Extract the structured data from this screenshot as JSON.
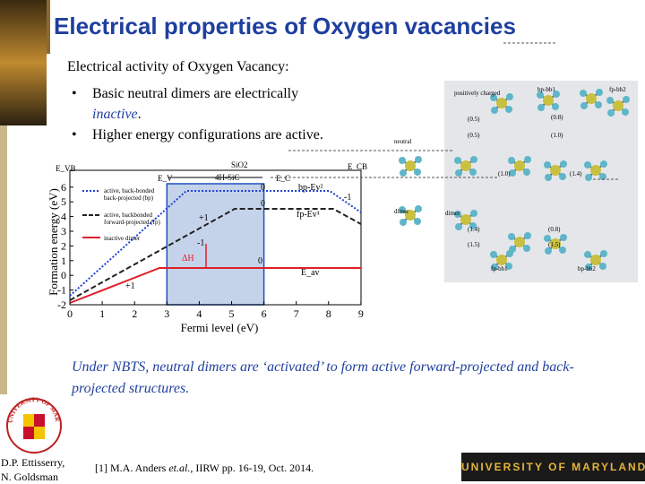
{
  "header": {
    "title": "Electrical properties of Oxygen vacancies"
  },
  "body": {
    "heading": "Electrical activity of Oxygen Vacancy:",
    "bullets": [
      {
        "marker": "•",
        "text": "Basic neutral dimers are electrically",
        "emphasis": "inactive",
        "end": "."
      },
      {
        "marker": "•",
        "text": "Higher energy configurations are active."
      }
    ]
  },
  "plot": {
    "xlabel": "Fermi level (eV)",
    "ylabel": "Formation energy (eV)",
    "xticks": [
      0,
      1,
      2,
      3,
      4,
      5,
      6,
      7,
      8,
      9
    ],
    "yticks": [
      -2,
      -1,
      0,
      1,
      2,
      3,
      4,
      5,
      6
    ],
    "band_labels": [
      "E_VB",
      "SiO2",
      "4H-SiC",
      "E_V",
      "E_C",
      "E_CB"
    ],
    "legend": [
      "active, back-bonded",
      "back-projected (bp)",
      "active, backbonded",
      "forward-projected (fp)",
      "inactive dimer"
    ],
    "annotations": [
      "0",
      "0",
      "-1",
      "+1",
      "-1",
      "0",
      "+1",
      "ΔH",
      "bp-Ev²",
      "fp-Ev¹",
      "E_av"
    ]
  },
  "diagram": {
    "labels": [
      "positively charged",
      "neutral",
      "dimer",
      "dimer",
      "fp-bb1",
      "bp-bb2",
      "bp-bb1",
      "fp-bb2"
    ],
    "energies": [
      "(0.5)",
      "(0.5)",
      "(0.8)",
      "(1.0)",
      "(1.0)",
      "(1.4)",
      "(1.4)",
      "(1.5)",
      "(0.8)",
      "(1.5)"
    ]
  },
  "caption": "Under NBTS, neutral dimers are ‘activated’ to form active forward-projected and back-projected structures.",
  "footer": {
    "authors": [
      "D.P. Ettisserry,",
      "N. Goldsman"
    ],
    "reference": [
      "[1] M.A. Anders ",
      "et.al.",
      ", IIRW pp. 16-19, Oct. 2014."
    ],
    "banner": "UNIVERSITY OF MARYLAND",
    "seal": "UNIVERSITY OF MARYLAND"
  }
}
